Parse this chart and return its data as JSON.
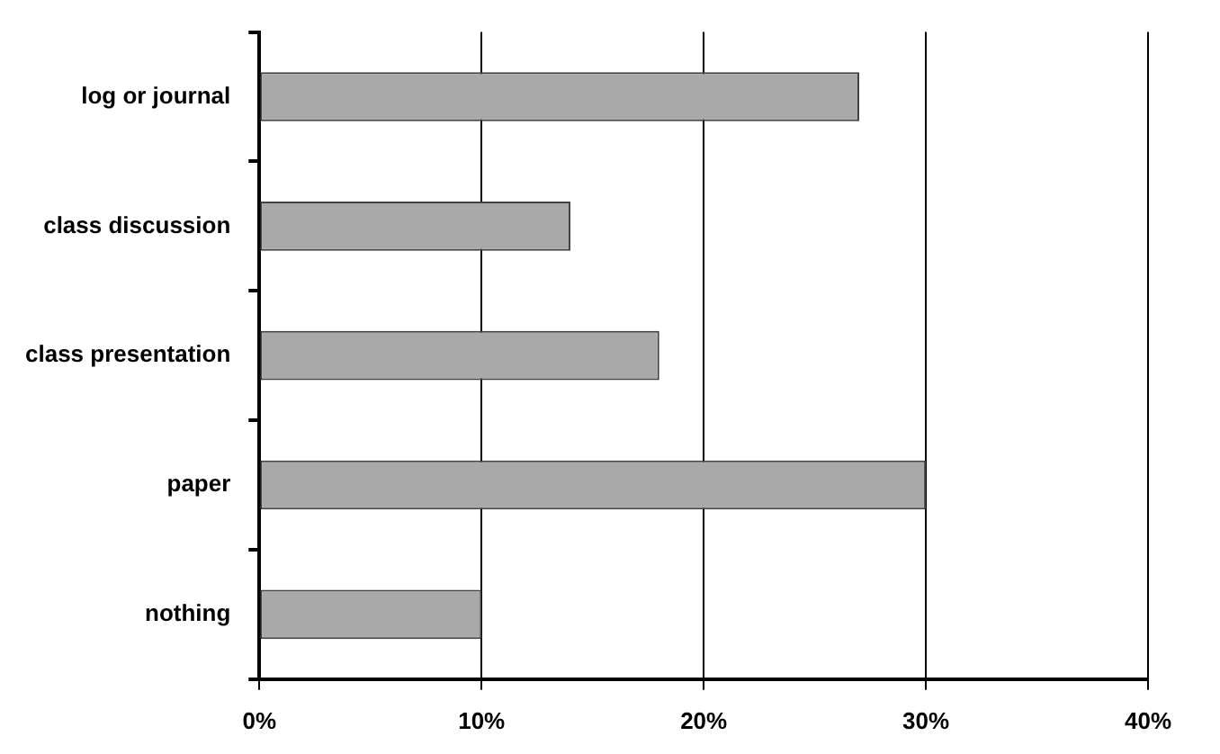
{
  "chart_data": {
    "type": "bar",
    "orientation": "horizontal",
    "categories": [
      "log or journal",
      "class discussion",
      "class presentation",
      "paper",
      "nothing"
    ],
    "values": [
      27,
      14,
      18,
      30,
      10
    ],
    "color": "#a9a9a9",
    "xlim": [
      0,
      40
    ],
    "xticks": [
      {
        "value": 0,
        "label": "0%"
      },
      {
        "value": 10,
        "label": "10%"
      },
      {
        "value": 20,
        "label": "20%"
      },
      {
        "value": 30,
        "label": "30%"
      },
      {
        "value": 40,
        "label": "40%"
      }
    ],
    "grid": "x",
    "legend": false
  }
}
